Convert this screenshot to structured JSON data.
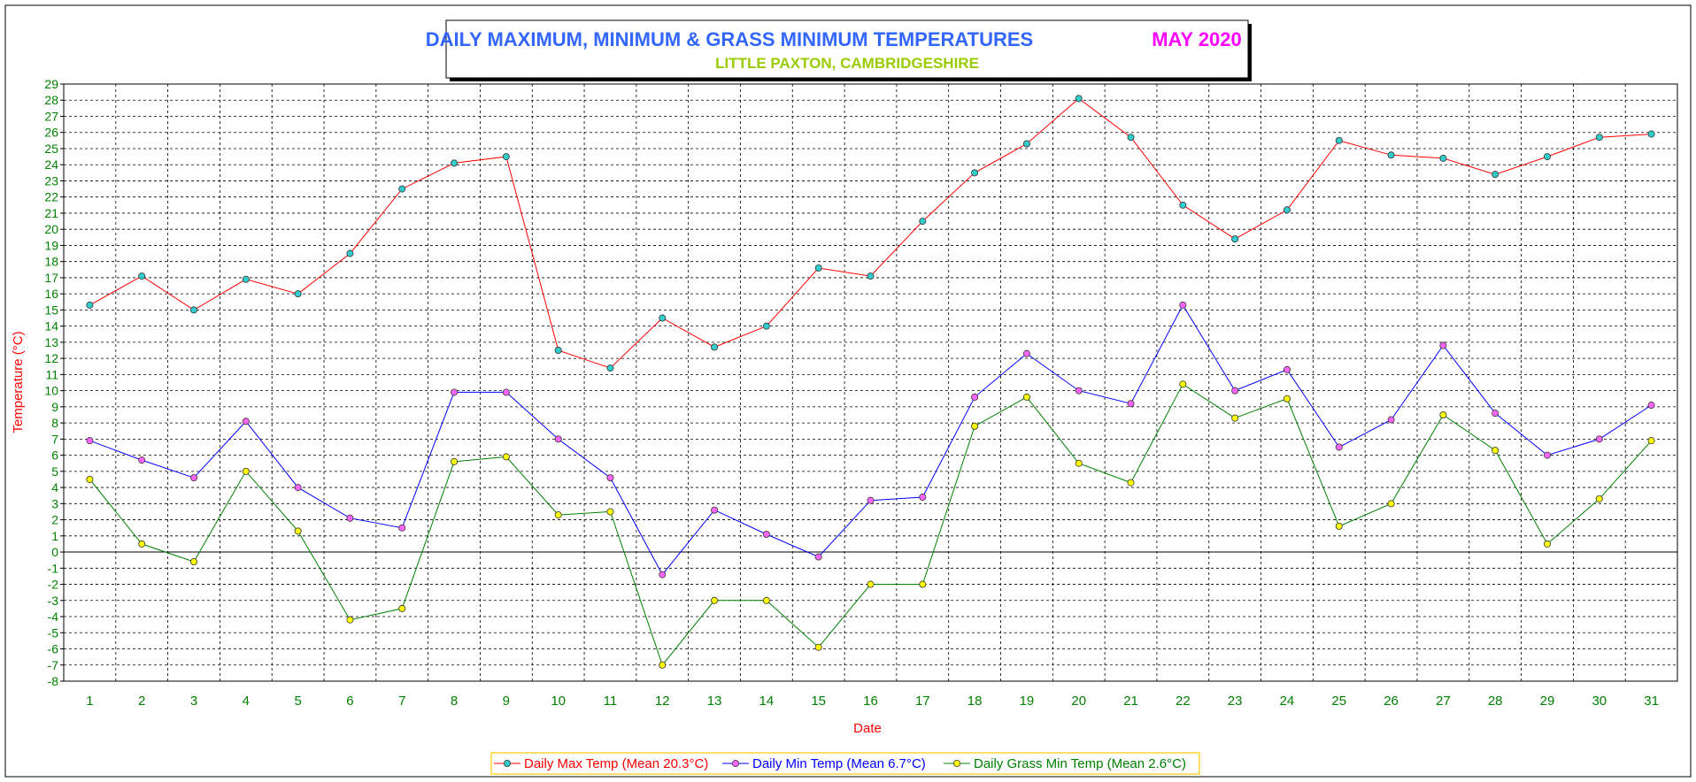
{
  "chart_data": {
    "type": "line",
    "title": "DAILY MAXIMUM, MINIMUM & GRASS MINIMUM TEMPERATURES",
    "title_month": "MAY 2020",
    "subtitle": "LITTLE PAXTON, CAMBRIDGESHIRE",
    "xlabel": "Date",
    "ylabel": "Temperature (°C)",
    "ylim": [
      -8,
      29
    ],
    "yticks": [
      -8,
      -7,
      -6,
      -5,
      -4,
      -3,
      -2,
      -1,
      0,
      1,
      2,
      3,
      4,
      5,
      6,
      7,
      8,
      9,
      10,
      11,
      12,
      13,
      14,
      15,
      16,
      17,
      18,
      19,
      20,
      21,
      22,
      23,
      24,
      25,
      26,
      27,
      28,
      29
    ],
    "x": [
      1,
      2,
      3,
      4,
      5,
      6,
      7,
      8,
      9,
      10,
      11,
      12,
      13,
      14,
      15,
      16,
      17,
      18,
      19,
      20,
      21,
      22,
      23,
      24,
      25,
      26,
      27,
      28,
      29,
      30,
      31
    ],
    "grid": true,
    "legend_position": "bottom",
    "series": [
      {
        "name": "Daily Max Temp (Mean 20.3°C)",
        "line_color": "#ff0000",
        "marker_color": "#33cccc",
        "values": [
          15.3,
          17.1,
          15.0,
          16.9,
          16.0,
          18.5,
          22.5,
          24.1,
          24.5,
          12.5,
          11.4,
          14.5,
          12.7,
          14.0,
          17.6,
          17.1,
          20.5,
          23.5,
          25.3,
          28.1,
          25.7,
          21.5,
          19.4,
          21.2,
          25.5,
          24.6,
          24.4,
          23.4,
          24.5,
          25.7,
          25.9
        ]
      },
      {
        "name": "Daily Min Temp (Mean 6.7°C)",
        "line_color": "#0000ff",
        "marker_color": "#ff66ff",
        "values": [
          6.9,
          5.7,
          4.6,
          8.1,
          4.0,
          2.1,
          1.5,
          9.9,
          9.9,
          7.0,
          4.6,
          -1.4,
          2.6,
          1.1,
          -0.3,
          3.2,
          3.4,
          9.6,
          12.3,
          10.0,
          9.2,
          15.3,
          10.0,
          11.3,
          6.5,
          8.2,
          12.8,
          8.6,
          6.0,
          7.0,
          9.1
        ]
      },
      {
        "name": "Daily Grass Min Temp (Mean 2.6°C)",
        "line_color": "#008000",
        "marker_color": "#ffff00",
        "values": [
          4.5,
          0.5,
          -0.6,
          5.0,
          1.3,
          -4.2,
          -3.5,
          5.6,
          5.9,
          2.3,
          2.5,
          -7.0,
          -3.0,
          -3.0,
          -5.9,
          -2.0,
          -2.0,
          7.8,
          9.6,
          5.5,
          4.3,
          10.4,
          8.3,
          9.5,
          1.6,
          3.0,
          8.5,
          6.3,
          0.5,
          3.3,
          6.9
        ]
      }
    ]
  },
  "colors": {
    "title_blue": "#3366ff",
    "title_month_magenta": "#ff00ff",
    "subtitle_green": "#99cc00",
    "legend_border": "#ffcc00",
    "zero_line": "#000000"
  }
}
